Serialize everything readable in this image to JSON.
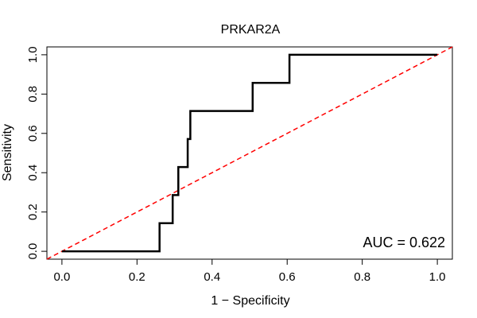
{
  "chart_data": {
    "type": "line",
    "title": "PRKAR2A",
    "xlabel": "1 − Specificity",
    "ylabel": "Sensitivity",
    "xlim": [
      -0.04,
      1.04
    ],
    "ylim": [
      -0.04,
      1.04
    ],
    "xticks": [
      "0.0",
      "0.2",
      "0.4",
      "0.6",
      "0.8",
      "1.0"
    ],
    "xtick_values": [
      0,
      0.2,
      0.4,
      0.6,
      0.8,
      1.0
    ],
    "yticks": [
      "0.0",
      "0.2",
      "0.4",
      "0.6",
      "0.8",
      "1.0"
    ],
    "ytick_values": [
      0,
      0.2,
      0.4,
      0.6,
      0.8,
      1.0
    ],
    "annotation": "AUC = 0.622",
    "grid": false,
    "series": [
      {
        "style": "solid",
        "color": "#000000",
        "x": [
          0.0,
          0.26,
          0.26,
          0.295,
          0.295,
          0.31,
          0.31,
          0.335,
          0.335,
          0.342,
          0.342,
          0.508,
          0.508,
          0.606,
          0.606,
          1.0
        ],
        "y": [
          0.0,
          0.0,
          0.143,
          0.143,
          0.286,
          0.286,
          0.429,
          0.429,
          0.571,
          0.571,
          0.714,
          0.714,
          0.857,
          0.857,
          1.0,
          1.0
        ]
      },
      {
        "style": "dashed",
        "color": "#ff0000",
        "x": [
          -0.04,
          1.04
        ],
        "y": [
          -0.04,
          1.04
        ]
      }
    ]
  }
}
